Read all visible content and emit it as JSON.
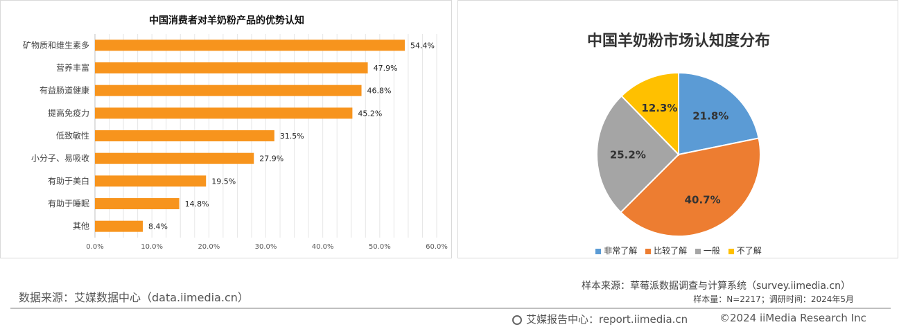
{
  "chart_data": [
    {
      "type": "bar",
      "orientation": "horizontal",
      "title": "中国消费者对羊奶粉产品的优势认知",
      "categories": [
        "矿物质和维生素多",
        "营养丰富",
        "有益肠道健康",
        "提高免疫力",
        "低致敏性",
        "小分子、易吸收",
        "有助于美白",
        "有助于睡眠",
        "其他"
      ],
      "values": [
        54.4,
        47.9,
        46.8,
        45.2,
        31.5,
        27.9,
        19.5,
        14.8,
        8.4
      ],
      "value_labels": [
        "54.4%",
        "47.9%",
        "46.8%",
        "45.2%",
        "31.5%",
        "27.9%",
        "19.5%",
        "14.8%",
        "8.4%"
      ],
      "xlim": [
        0,
        60
      ],
      "xticks": [
        "0.0%",
        "10.0%",
        "20.0%",
        "30.0%",
        "40.0%",
        "50.0%",
        "60.0%"
      ],
      "grid": true,
      "bar_color": "#F7941D"
    },
    {
      "type": "pie",
      "title": "中国羊奶粉市场认知度分布",
      "labels": [
        "非常了解",
        "比较了解",
        "一般",
        "不了解"
      ],
      "values": [
        21.8,
        40.7,
        25.2,
        12.3
      ],
      "value_labels": [
        "21.8%",
        "40.7%",
        "25.2%",
        "12.3%"
      ],
      "colors": [
        "#5B9BD5",
        "#ED7D31",
        "#A5A5A5",
        "#FFC000"
      ],
      "legend_position": "bottom"
    }
  ],
  "footer": {
    "source": "数据来源：艾媒数据中心（data.iimedia.cn）",
    "sample_source": "样本来源：草莓派数据调查与计算系统（survey.iimedia.cn）",
    "sample_info": "样本量：N=2217；调研时间：2024年5月",
    "report": "艾媒报告中心：report.iimedia.cn",
    "copyright": "©2024  iiMedia Research  Inc"
  }
}
